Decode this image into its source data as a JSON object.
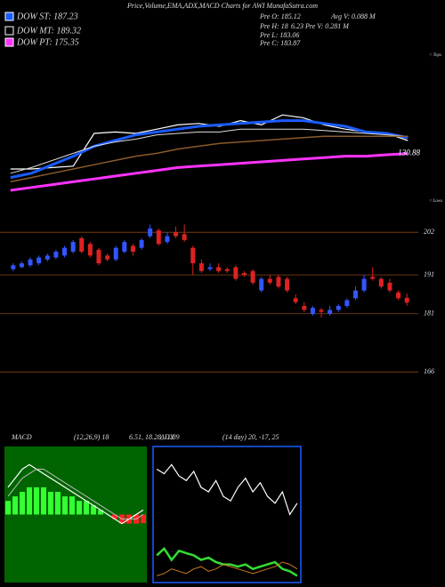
{
  "header": {
    "title": "Price,Volume,EMA,ADX,MACD Charts for AWI MunafaSutra.com",
    "legend": [
      {
        "label": "DOW ST: 187.23",
        "color": "#1a5cff"
      },
      {
        "label": "DOW MT: 189.32",
        "color": "#000000"
      },
      {
        "label": "DOW PT: 175.35",
        "color": "#ff33ff"
      }
    ],
    "info": [
      "Pre  O: 185.12",
      "Avg  V: 0.088  M",
      "Pre  H: 18",
      "6.23  Pre  V: 0.281 M",
      "Pre  L: 183.06",
      "Pre  C: 183.87"
    ]
  },
  "chart_data": [
    {
      "type": "line",
      "ylim": [
        100,
        200
      ],
      "annotations": [
        "< Tops",
        "< Lows"
      ],
      "series": [
        {
          "name": "Price",
          "color": "#ffffff",
          "width": 1.2,
          "values": [
            120,
            120,
            121,
            122,
            145,
            146,
            145,
            148,
            151,
            152,
            150,
            154,
            151,
            158,
            156,
            151,
            148,
            146,
            145,
            140
          ]
        },
        {
          "name": "EMA ST",
          "color": "#1a5cff",
          "width": 3,
          "values": [
            114,
            117,
            123,
            129,
            136,
            140,
            144,
            146,
            148,
            150,
            151,
            152,
            153,
            154,
            154,
            152,
            150,
            146,
            145,
            142
          ]
        },
        {
          "name": "EMA MT",
          "color": "#dddddd",
          "width": 1,
          "values": [
            117,
            121,
            126,
            131,
            136,
            139,
            141,
            144,
            145,
            146,
            146,
            148,
            148,
            148,
            148,
            147,
            146,
            145,
            144,
            143
          ]
        },
        {
          "name": "EMA LT",
          "color": "#8b5a2b",
          "width": 1.5,
          "values": [
            111,
            114,
            117,
            120,
            123,
            126,
            129,
            131,
            134,
            136,
            138,
            139,
            140,
            141,
            142,
            143,
            143,
            143,
            143,
            143
          ]
        },
        {
          "name": "EMA PT",
          "color": "#ff33ff",
          "width": 3,
          "values": [
            105,
            107,
            109,
            111,
            113,
            115,
            117,
            119,
            121,
            122,
            123,
            124,
            125,
            126,
            127,
            128,
            129,
            129,
            130,
            130.88
          ],
          "end_label": "130.88"
        }
      ]
    },
    {
      "type": "candlestick",
      "ylim": [
        161,
        208
      ],
      "yticks": [
        202,
        191,
        181,
        166
      ],
      "grid_color": "#8b4513",
      "up_color": "#3355ff",
      "down_color": "#dd2222",
      "open": [
        192.5,
        193,
        193.5,
        194,
        195,
        195.5,
        196,
        197,
        200.5,
        199,
        197.5,
        196,
        195,
        197,
        198.5,
        198,
        201,
        202.5,
        199.5,
        202,
        201.5,
        198,
        194,
        192.5,
        193,
        192.5,
        193,
        191.5,
        192,
        187,
        190,
        190.5,
        190,
        185,
        183,
        181,
        182,
        181,
        182,
        183,
        185,
        187,
        190.5,
        190,
        189,
        186.5,
        185.12
      ],
      "high": [
        194,
        194.5,
        195.5,
        196,
        196.5,
        197.5,
        198.5,
        200,
        201,
        199.5,
        198,
        196.5,
        198.5,
        200,
        199,
        200.5,
        204,
        203,
        202,
        203.5,
        204,
        198.5,
        195,
        194,
        194,
        193,
        193.5,
        192,
        192.5,
        190.5,
        191,
        191,
        190.5,
        186,
        184,
        183,
        182.5,
        183,
        183.5,
        185,
        188,
        191,
        193,
        190.5,
        190,
        187,
        186.23
      ],
      "low": [
        192,
        192.8,
        193,
        193.5,
        194.5,
        195,
        195.5,
        196.5,
        196.5,
        195.5,
        193.5,
        194.5,
        194.5,
        196.5,
        196,
        197.5,
        200.5,
        198.5,
        199,
        200.5,
        199.5,
        191,
        191.5,
        192,
        191.5,
        191.5,
        189.5,
        190.5,
        188.5,
        186.5,
        188.5,
        187.5,
        186.5,
        183.5,
        181.5,
        180.5,
        180,
        180.5,
        181.5,
        182.5,
        184.5,
        186.5,
        189.5,
        187.5,
        186.5,
        184.5,
        183.06
      ],
      "close": [
        193.5,
        194,
        195,
        195.5,
        196,
        197,
        198,
        199.5,
        197,
        196,
        194,
        195,
        198,
        199.5,
        197,
        200,
        203,
        199,
        201,
        201,
        200,
        194,
        192,
        193,
        192,
        192,
        190,
        191,
        189,
        190,
        189,
        188,
        187,
        184,
        182,
        182.5,
        181.5,
        182,
        183,
        184.5,
        187,
        190,
        190,
        188,
        187,
        185,
        183.87
      ]
    },
    {
      "type": "macd",
      "title": "MACD",
      "params": "(12,26,9) 18",
      "readout": "6.51, 18.28, -1.89",
      "background": "#006400",
      "ylim": [
        -15,
        15
      ],
      "pos_color": "#33ff33",
      "neg_color": "#ff2222",
      "histogram": [
        3,
        4,
        5,
        6,
        6,
        6,
        5,
        5,
        4,
        4,
        3,
        3,
        2,
        1,
        0,
        -1,
        -2,
        -2,
        -2,
        -1.89
      ],
      "series": [
        {
          "name": "MACD",
          "color": "#ffffff",
          "width": 1.2,
          "values": [
            6,
            8,
            10,
            11,
            10,
            9,
            8,
            7,
            6,
            5,
            4,
            3,
            2,
            1,
            0,
            -1,
            -2,
            -1,
            0,
            1
          ]
        },
        {
          "name": "Signal",
          "color": "#bbbbbb",
          "width": 1,
          "values": [
            4,
            6,
            8,
            9,
            10,
            10,
            9,
            8,
            7,
            6,
            5,
            4,
            3,
            2,
            1,
            0,
            -1,
            -1,
            -1,
            0
          ]
        }
      ]
    },
    {
      "type": "line",
      "title": "ADX",
      "params": "(14 day) 20, -17, 25",
      "border": "#1a5cff",
      "ylim": [
        0,
        60
      ],
      "series": [
        {
          "name": "ADX",
          "color": "#ffffff",
          "width": 1.2,
          "values": [
            50,
            48,
            52,
            47,
            45,
            49,
            42,
            40,
            45,
            38,
            36,
            42,
            46,
            40,
            44,
            38,
            35,
            40,
            30,
            35
          ]
        },
        {
          "name": "+DI",
          "color": "#33dd33",
          "width": 2.5,
          "values": [
            12,
            15,
            10,
            14,
            13,
            12,
            10,
            11,
            9,
            8,
            8,
            7,
            8,
            6,
            7,
            8,
            9,
            6,
            5,
            3
          ]
        },
        {
          "name": "-DI",
          "color": "#cc7a22",
          "width": 1,
          "values": [
            3,
            4,
            6,
            5,
            4,
            6,
            7,
            5,
            6,
            8,
            7,
            6,
            5,
            4,
            5,
            6,
            7,
            9,
            8,
            6
          ]
        }
      ]
    }
  ]
}
